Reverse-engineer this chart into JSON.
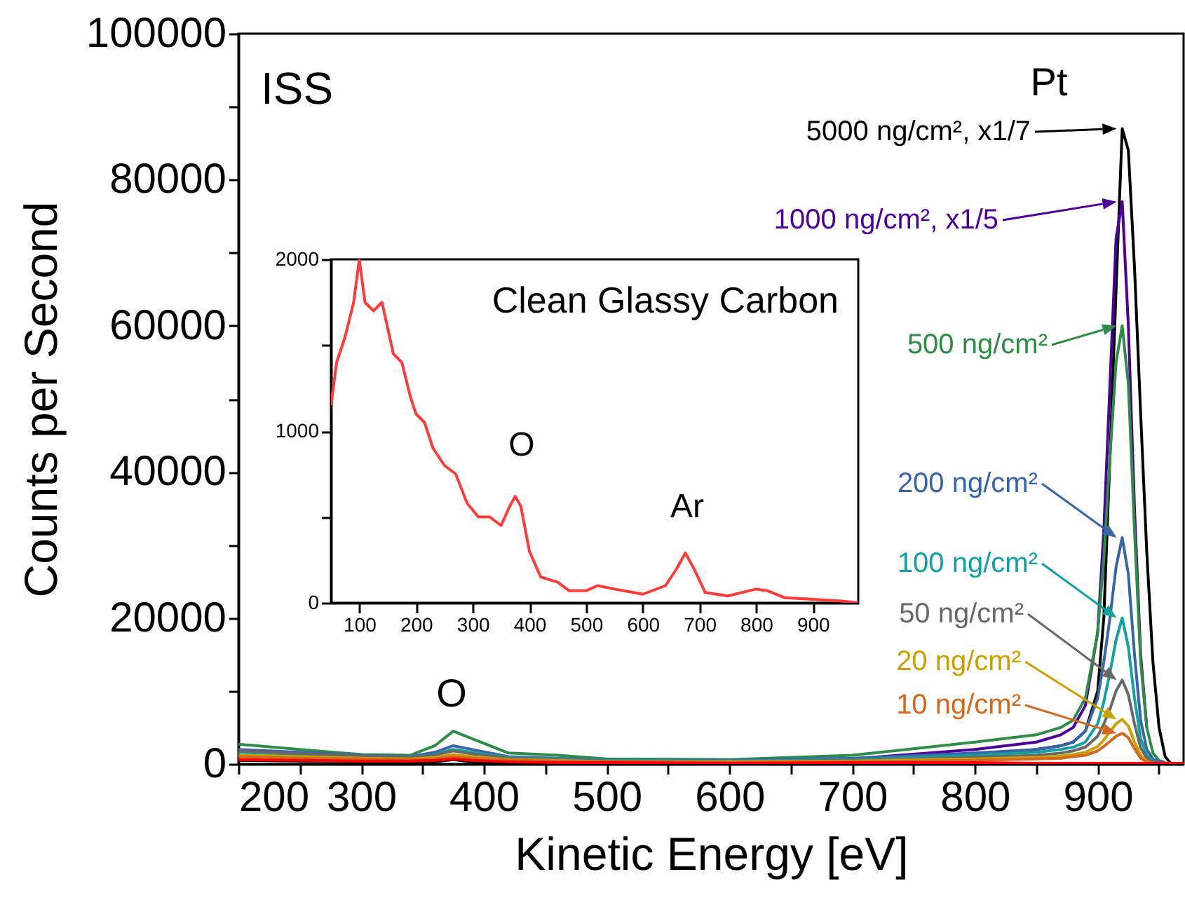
{
  "chart_data": [
    {
      "type": "line",
      "xlabel": "Kinetic Energy [eV]",
      "ylabel": "Counts per Second",
      "xlim": [
        200,
        970
      ],
      "ylim": [
        0,
        100000
      ],
      "xticks": [
        200,
        {
          "value": 250,
          "label": null
        },
        300,
        {
          "value": 350,
          "label": null
        },
        400,
        {
          "value": 450,
          "label": null
        },
        500,
        {
          "value": 550,
          "label": null
        },
        600,
        {
          "value": 650,
          "label": null
        },
        700,
        {
          "value": 750,
          "label": null
        },
        800,
        {
          "value": 850,
          "label": null
        },
        900,
        {
          "value": 950,
          "label": null
        }
      ],
      "yticks": [
        0,
        {
          "value": 10000,
          "label": null
        },
        20000,
        {
          "value": 30000,
          "label": null
        },
        40000,
        {
          "value": 50000,
          "label": null
        },
        60000,
        {
          "value": 70000,
          "label": null
        },
        80000,
        {
          "value": 90000,
          "label": null
        },
        100000
      ],
      "x": [
        200,
        250,
        300,
        340,
        360,
        375,
        390,
        420,
        460,
        500,
        600,
        700,
        800,
        850,
        870,
        880,
        890,
        900,
        905,
        910,
        915,
        920,
        925,
        930,
        935,
        940,
        945,
        950,
        955,
        960,
        970
      ],
      "series": [
        {
          "name": "5000 ng/cm², x1/7",
          "color": "#000000",
          "values": [
            500,
            400,
            300,
            300,
            300,
            600,
            300,
            200,
            200,
            200,
            200,
            300,
            1000,
            2000,
            2500,
            3000,
            4500,
            10000,
            20000,
            42000,
            65000,
            87000,
            84000,
            68000,
            48000,
            29000,
            14000,
            5000,
            1000,
            0,
            0
          ]
        },
        {
          "name": "1000 ng/cm², x1/5",
          "color": "#4b0096",
          "values": [
            null,
            null,
            null,
            null,
            null,
            null,
            null,
            null,
            null,
            null,
            null,
            700,
            2000,
            3000,
            4000,
            5000,
            8000,
            18000,
            32000,
            52000,
            72000,
            77000,
            60000,
            35000,
            15000,
            5000,
            null,
            null,
            null,
            null,
            null
          ]
        },
        {
          "name": "500 ng/cm²",
          "color": "#2e8b4a",
          "values": [
            2700,
            2000,
            1300,
            1200,
            2500,
            4500,
            3500,
            1500,
            1200,
            700,
            600,
            1200,
            3000,
            4000,
            5000,
            6000,
            9000,
            18000,
            28000,
            42000,
            55000,
            60000,
            52000,
            32000,
            14000,
            5000,
            1500,
            500,
            200,
            null,
            null
          ]
        },
        {
          "name": "200 ng/cm²",
          "color": "#3a64a8",
          "values": [
            2000,
            1600,
            1200,
            1000,
            1600,
            2500,
            2000,
            1000,
            800,
            500,
            500,
            800,
            1500,
            2000,
            2500,
            3000,
            4500,
            9000,
            14000,
            20000,
            27000,
            31000,
            26000,
            15000,
            6000,
            2000,
            700,
            300,
            100,
            null,
            null
          ]
        },
        {
          "name": "100 ng/cm²",
          "color": "#12a0a0",
          "values": [
            1600,
            1300,
            1000,
            900,
            1300,
            2000,
            1600,
            900,
            700,
            500,
            400,
            600,
            1200,
            1600,
            2000,
            2300,
            3000,
            5500,
            8500,
            12500,
            17000,
            20000,
            16000,
            9000,
            3500,
            1200,
            400,
            100,
            null,
            null,
            null
          ]
        },
        {
          "name": "50 ng/cm²",
          "color": "#686868",
          "values": [
            1800,
            1400,
            1100,
            900,
            1200,
            1800,
            1400,
            800,
            600,
            400,
            300,
            500,
            900,
            1200,
            1500,
            1800,
            2300,
            3800,
            5500,
            7500,
            10000,
            11500,
            9500,
            5500,
            2200,
            800,
            300,
            100,
            null,
            null,
            null
          ]
        },
        {
          "name": "20 ng/cm²",
          "color": "#c8a000",
          "values": [
            1200,
            1000,
            800,
            700,
            900,
            1300,
            1000,
            600,
            500,
            300,
            300,
            400,
            700,
            900,
            1100,
            1300,
            1600,
            2400,
            3300,
            4400,
            5500,
            6100,
            5200,
            3000,
            1200,
            400,
            100,
            null,
            null,
            null,
            null
          ]
        },
        {
          "name": "10 ng/cm²",
          "color": "#d2691e",
          "values": [
            1000,
            800,
            700,
            600,
            700,
            1000,
            800,
            500,
            400,
            300,
            200,
            300,
            500,
            700,
            800,
            1000,
            1200,
            1800,
            2400,
            3100,
            3800,
            4200,
            3600,
            2100,
            800,
            300,
            100,
            null,
            null,
            null,
            null
          ]
        },
        {
          "color": "#ff0000",
          "values": [
            600,
            500,
            400,
            400,
            500,
            700,
            500,
            300,
            200,
            200,
            100,
            200,
            200,
            100,
            100,
            100,
            100,
            100,
            100,
            100,
            100,
            100,
            100,
            100,
            100,
            100,
            100,
            100,
            100,
            100,
            100
          ]
        }
      ],
      "annotations": [
        "ISS",
        "Pt",
        "O"
      ],
      "legend": "right"
    },
    {
      "type": "line",
      "xlim": [
        50,
        980
      ],
      "ylim": [
        0,
        2000
      ],
      "xticks": [
        100,
        200,
        300,
        400,
        500,
        600,
        700,
        800,
        900
      ],
      "yticks": [
        0,
        {
          "value": 500,
          "label": null
        },
        1000,
        {
          "value": 1500,
          "label": null
        },
        2000
      ],
      "x": [
        50,
        60,
        75,
        90,
        100,
        110,
        125,
        140,
        150,
        160,
        175,
        190,
        200,
        215,
        230,
        250,
        270,
        290,
        310,
        330,
        350,
        365,
        375,
        385,
        400,
        420,
        450,
        470,
        500,
        520,
        550,
        600,
        640,
        660,
        675,
        690,
        710,
        750,
        800,
        820,
        850,
        900,
        950,
        980
      ],
      "series": [
        {
          "color": "#ff3b3b",
          "values": [
            1150,
            1400,
            1550,
            1750,
            2000,
            1750,
            1700,
            1750,
            1600,
            1450,
            1400,
            1200,
            1100,
            1050,
            900,
            800,
            750,
            580,
            500,
            500,
            450,
            560,
            620,
            560,
            300,
            150,
            120,
            70,
            70,
            100,
            80,
            50,
            100,
            200,
            290,
            200,
            60,
            40,
            80,
            70,
            30,
            20,
            10,
            0
          ]
        }
      ],
      "annotations": [
        "Clean Glassy Carbon",
        "O",
        "Ar"
      ]
    }
  ]
}
